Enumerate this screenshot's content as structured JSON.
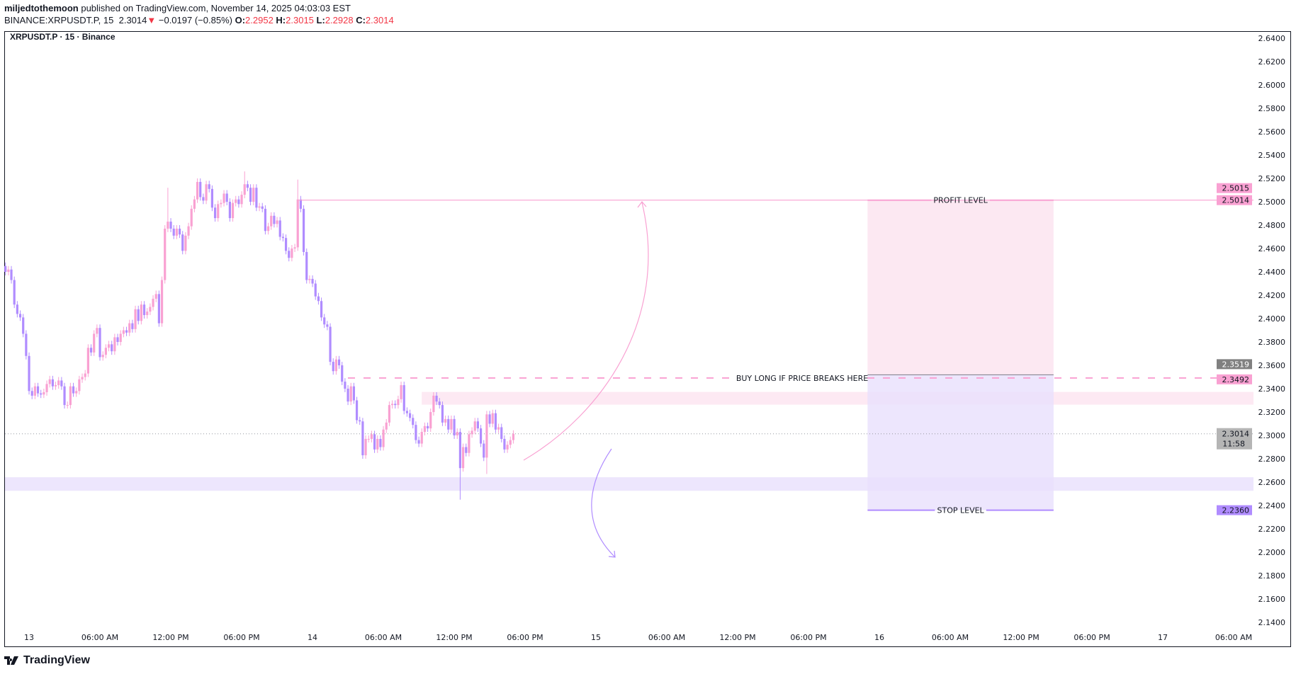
{
  "header": {
    "author": "miljedtothemoon",
    "published": "published on TradingView.com, November 14, 2025 04:03:03 EST",
    "symbol": "BINANCE:XRPUSDT.P, 15",
    "last": "2.3014",
    "change": "−0.0197 (−0.85%)",
    "o_label": "O:",
    "o": "2.2952",
    "h_label": "H:",
    "h": "2.3015",
    "l_label": "L:",
    "l": "2.2928",
    "c_label": "C:",
    "c": "2.3014"
  },
  "legend_title": "XRPUSDT.P · 15 · Binance",
  "footer": {
    "brand": "TradingView"
  },
  "colors": {
    "up": "#f9a1d2",
    "down": "#b08cff",
    "pink_line": "#f9a1d2",
    "purple_line": "#b08cff",
    "pink_zone": "#fde9f3",
    "purple_zone": "#ede6fd",
    "entry_label": "#808080",
    "last_label": "#b5b5b5",
    "down_arrow": "#f23645"
  },
  "chart_data": {
    "type": "candlestick",
    "interval": "15",
    "first_candle_time": "2025-11-12 22:00",
    "first_open": 2.445,
    "closes": [
      2.44,
      2.442,
      2.433,
      2.412,
      2.404,
      2.401,
      2.387,
      2.368,
      2.338,
      2.334,
      2.342,
      2.336,
      2.335,
      2.337,
      2.344,
      2.348,
      2.342,
      2.343,
      2.347,
      2.342,
      2.326,
      2.326,
      2.342,
      2.336,
      2.338,
      2.348,
      2.35,
      2.353,
      2.375,
      2.371,
      2.387,
      2.392,
      2.367,
      2.369,
      2.375,
      2.378,
      2.372,
      2.384,
      2.38,
      2.387,
      2.39,
      2.388,
      2.396,
      2.391,
      2.408,
      2.398,
      2.412,
      2.403,
      2.406,
      2.41,
      2.417,
      2.421,
      2.396,
      2.433,
      2.477,
      2.483,
      2.477,
      2.471,
      2.477,
      2.472,
      2.458,
      2.471,
      2.479,
      2.494,
      2.502,
      2.517,
      2.504,
      2.501,
      2.515,
      2.511,
      2.495,
      2.486,
      2.498,
      2.499,
      2.507,
      2.5,
      2.486,
      2.499,
      2.502,
      2.498,
      2.506,
      2.515,
      2.512,
      2.5,
      2.512,
      2.495,
      2.496,
      2.494,
      2.475,
      2.479,
      2.488,
      2.481,
      2.484,
      2.47,
      2.469,
      2.458,
      2.452,
      2.46,
      2.461,
      2.502,
      2.494,
      2.457,
      2.433,
      2.434,
      2.43,
      2.419,
      2.415,
      2.401,
      2.395,
      2.393,
      2.363,
      2.355,
      2.365,
      2.36,
      2.346,
      2.34,
      2.329,
      2.342,
      2.33,
      2.313,
      2.312,
      2.283,
      2.297,
      2.297,
      2.301,
      2.288,
      2.297,
      2.29,
      2.305,
      2.311,
      2.326,
      2.327,
      2.326,
      2.331,
      2.343,
      2.321,
      2.319,
      2.315,
      2.309,
      2.296,
      2.293,
      2.303,
      2.308,
      2.306,
      2.32,
      2.334,
      2.329,
      2.326,
      2.311,
      2.314,
      2.305,
      2.314,
      2.3,
      2.303,
      2.272,
      2.29,
      2.285,
      2.301,
      2.304,
      2.312,
      2.306,
      2.293,
      2.281,
      2.318,
      2.31,
      2.319,
      2.305,
      2.307,
      2.297,
      2.288,
      2.292,
      2.296,
      2.3014
    ],
    "notable_wicks": [
      {
        "i": 55,
        "h": 2.512
      },
      {
        "i": 81,
        "h": 2.526
      },
      {
        "i": 99,
        "h": 2.519
      },
      {
        "i": 154,
        "l": 2.245
      },
      {
        "i": 163,
        "l": 2.267
      }
    ],
    "ylim": [
      2.14,
      2.64
    ],
    "y_ticks": [
      "2.6400",
      "2.6200",
      "2.6000",
      "2.5800",
      "2.5600",
      "2.5400",
      "2.5200",
      "2.5000",
      "2.4800",
      "2.4600",
      "2.4400",
      "2.4200",
      "2.4000",
      "2.3800",
      "2.3600",
      "2.3400",
      "2.3200",
      "2.3000",
      "2.2800",
      "2.2600",
      "2.2400",
      "2.2200",
      "2.2000",
      "2.1800",
      "2.1600",
      "2.1400"
    ],
    "x_ticks": [
      "13",
      "06:00 AM",
      "12:00 PM",
      "06:00 PM",
      "14",
      "06:00 AM",
      "12:00 PM",
      "06:00 PM",
      "15",
      "06:00 AM",
      "12:00 PM",
      "06:00 PM",
      "16",
      "06:00 AM",
      "12:00 PM",
      "06:00 PM",
      "17",
      "06:00 AM"
    ],
    "x_tick_step_hours": 6,
    "last_price": 2.3014,
    "countdown": "11:58",
    "profit_line": {
      "price": 2.5014,
      "from_time": "2025-11-13 22:45"
    },
    "breakout_line": {
      "price": 2.3492,
      "from_time": "2025-11-14 03:00",
      "label": "BUY LONG IF PRICE BREAKS HERE"
    },
    "pink_zone": {
      "top": 2.3372,
      "bottom": 2.3263,
      "from_time": "2025-11-14 09:15"
    },
    "purple_zone": {
      "top": 2.2642,
      "bottom": 2.2526
    },
    "long_position": {
      "from_time": "2025-11-15 23:00",
      "to_time": "2025-11-16 14:45",
      "entry": 2.3519,
      "target": 2.5014,
      "stop": 2.236,
      "target_label": "PROFIT LEVEL",
      "stop_label": "STOP LEVEL"
    },
    "axis_labels": {
      "target_a": "2.5015",
      "target_b": "2.5014",
      "entry": "2.3519",
      "breakout": "2.3492",
      "last": "2.3014",
      "stop": "2.2360"
    }
  }
}
